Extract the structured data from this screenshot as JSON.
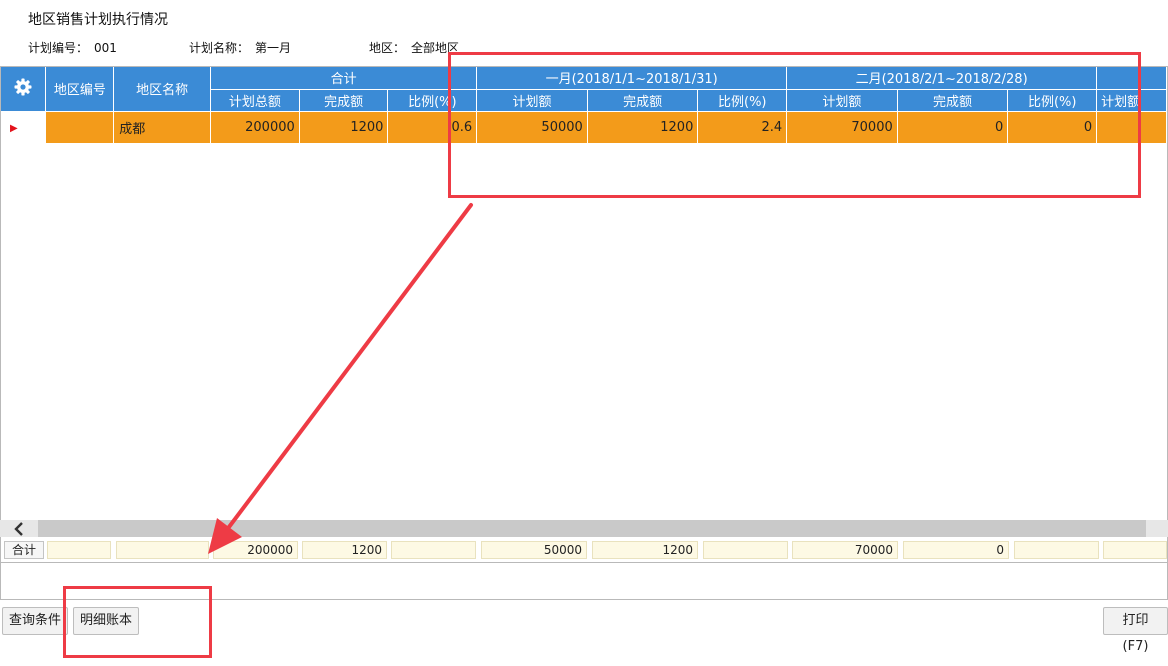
{
  "page": {
    "title": "地区销售计划执行情况",
    "plan_no_label": "计划编号：",
    "plan_no_value": "001",
    "plan_name_label": "计划名称：",
    "plan_name_value": "第一月",
    "region_label": "地区：",
    "region_value": "全部地区"
  },
  "grid": {
    "headers": {
      "region_code": "地区编号",
      "region_name": "地区名称",
      "group_total": "合计",
      "group_jan": "一月(2018/1/1~2018/1/31)",
      "group_feb": "二月(2018/2/1~2018/2/28)",
      "plan_total": "计划总额",
      "completed": "完成额",
      "ratio": "比例(%)",
      "plan_amount": "计划额",
      "partial_next": "计划额"
    },
    "rows": [
      {
        "indicator": "▶",
        "code": "",
        "name": "成都",
        "plan_total": "200000",
        "completed_total": "1200",
        "ratio_total": "0.6",
        "jan_plan": "50000",
        "jan_completed": "1200",
        "jan_ratio": "2.4",
        "feb_plan": "70000",
        "feb_completed": "0",
        "feb_ratio": "0"
      }
    ],
    "totals": {
      "label": "合计",
      "plan_total": "200000",
      "completed_total": "1200",
      "jan_plan": "50000",
      "jan_completed": "1200",
      "feb_plan": "70000",
      "feb_completed": "0"
    }
  },
  "buttons": {
    "query": "查询条件",
    "detail": "明细账本",
    "print": "打印(F7)"
  },
  "colors": {
    "header_blue": "#3b8bd6",
    "row_orange": "#f39b1a",
    "annotation_red": "#ee3b45",
    "totals_bg": "#fdf9e4"
  },
  "icons": {
    "settings": "gear-icon",
    "row_indicator": "triangle-right-icon",
    "scroll_left": "chevron-left-icon"
  }
}
